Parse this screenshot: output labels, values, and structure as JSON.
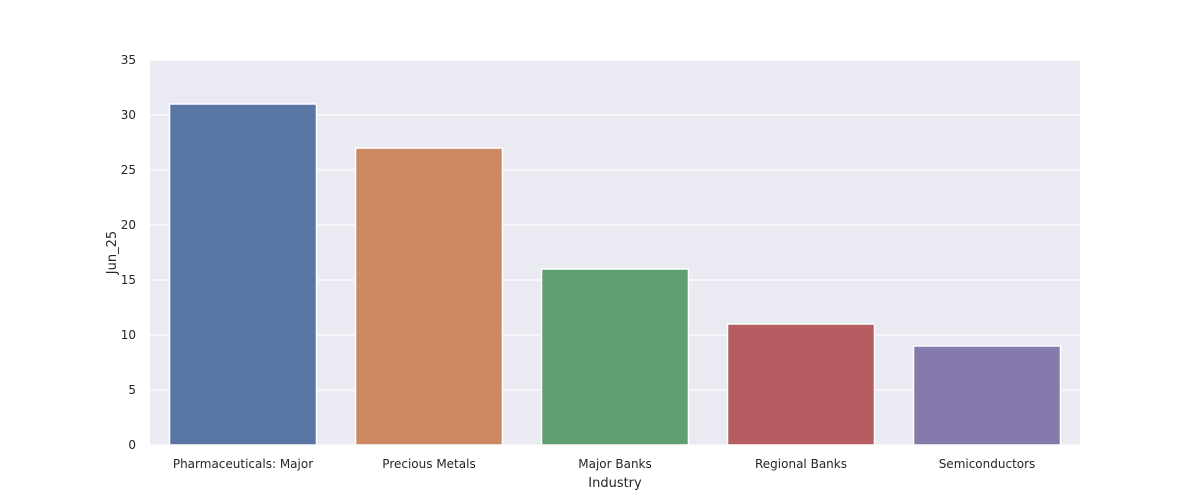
{
  "chart_data": {
    "type": "bar",
    "title": "",
    "xlabel": "Industry",
    "ylabel": "Jun_25",
    "categories": [
      "Pharmaceuticals: Major",
      "Precious Metals",
      "Major Banks",
      "Regional Banks",
      "Semiconductors"
    ],
    "values": [
      31,
      27,
      16,
      11,
      9
    ],
    "ylim": [
      0,
      35
    ],
    "yticks": [
      0,
      5,
      10,
      15,
      20,
      25,
      30,
      35
    ],
    "grid": true,
    "legend": "none",
    "colors": [
      "#5975a4",
      "#cc8963",
      "#5f9e6e",
      "#b55d60",
      "#857aab"
    ],
    "plot_background": "#eaeaf2",
    "grid_color": "#ffffff"
  }
}
